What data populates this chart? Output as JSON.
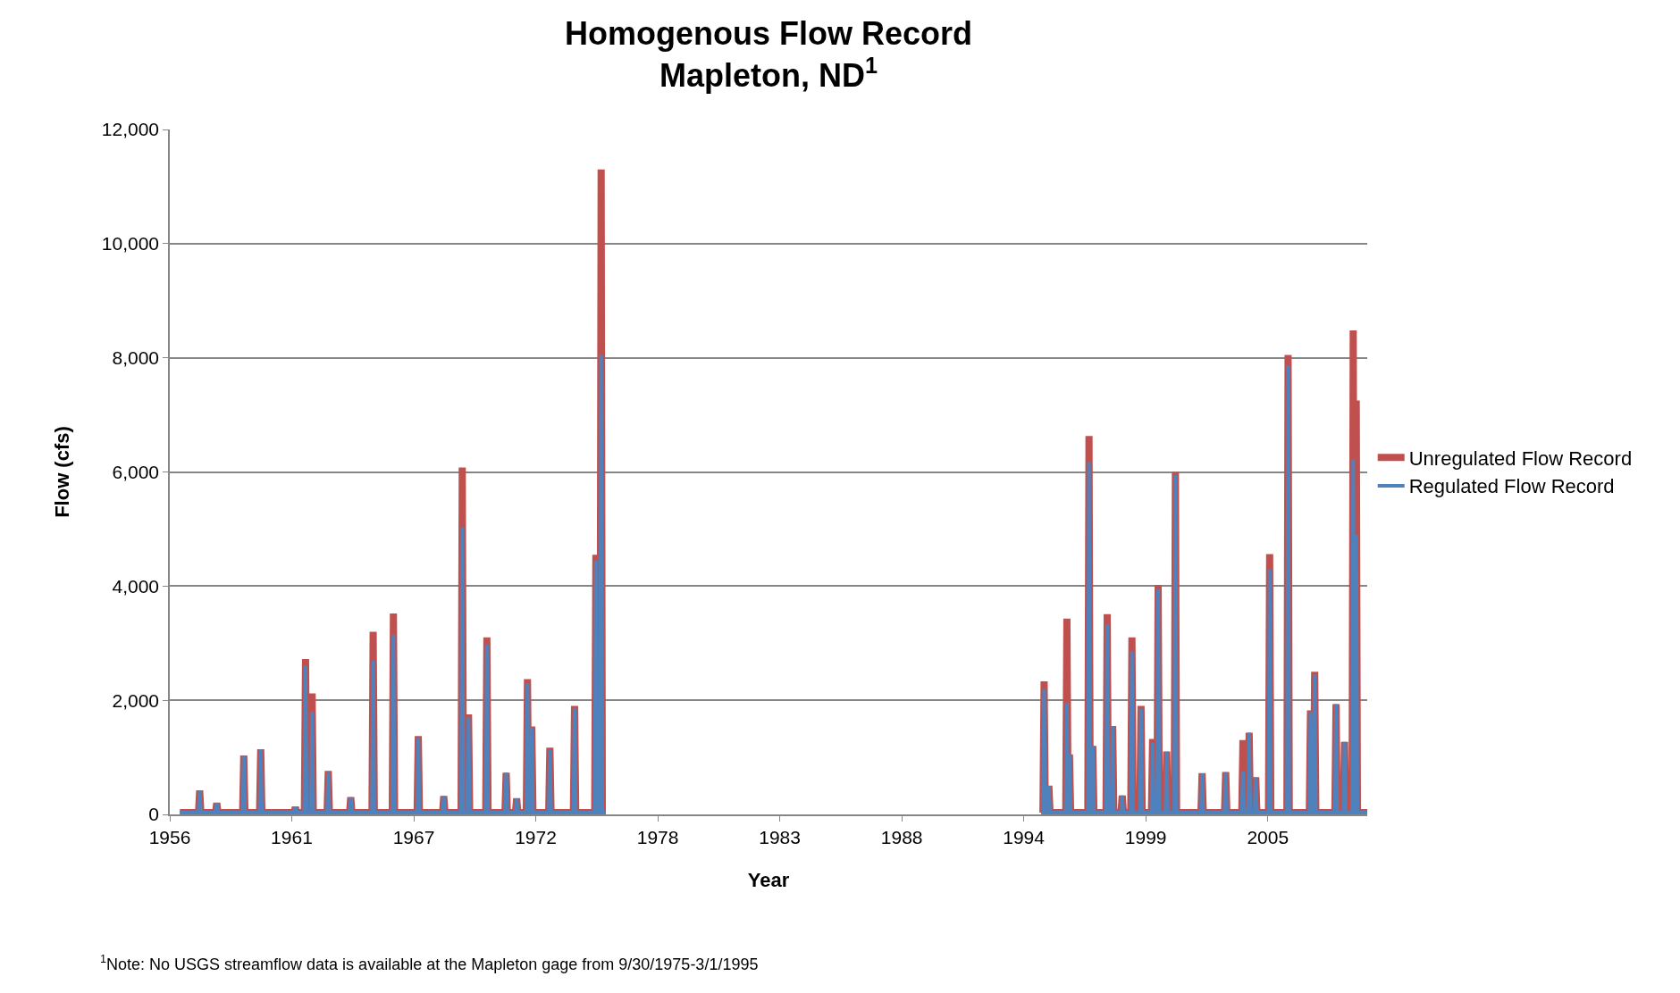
{
  "chart_data": {
    "type": "line",
    "title": "Homogenous Flow Record\nMapleton, ND$^{1}$",
    "xlabel": "Year",
    "ylabel": "Flow (cfs)",
    "annotations": [
      "$^{1}$Note: No USGS streamflow data is available at the Mapleton gage from 9/30/1975-3/1/1995"
    ],
    "x": [
      "1956-10-01",
      "1957-08-01",
      "1957-08-20",
      "1957-09-08",
      "1958-05-06",
      "1958-05-25",
      "1958-06-13",
      "1959-07-20",
      "1959-08-08",
      "1959-08-27",
      "1960-04-21",
      "1960-05-10",
      "1960-05-29",
      "1961-11-06",
      "1961-11-25",
      "1961-12-14",
      "1962-04-21",
      "1962-05-10",
      "1962-05-29",
      "1962-08-06",
      "1962-08-25",
      "1962-09-13",
      "1963-04-26",
      "1963-05-15",
      "1963-06-03",
      "1964-04-26",
      "1964-05-15",
      "1964-06-03",
      "1965-04-26",
      "1965-05-15",
      "1965-06-03",
      "1966-03-22",
      "1966-04-10",
      "1966-04-29",
      "1967-05-01",
      "1967-05-20",
      "1967-06-08",
      "1968-06-19",
      "1968-07-08",
      "1968-07-27",
      "1969-04-16",
      "1969-05-05",
      "1969-05-24",
      "1969-07-27",
      "1969-08-15",
      "1969-09-03",
      "1970-05-22",
      "1970-06-10",
      "1970-06-29",
      "1971-04-01",
      "1971-04-20",
      "1971-05-09",
      "1971-09-19",
      "1971-10-08",
      "1971-10-27",
      "1972-03-13",
      "1972-04-01",
      "1972-04-20",
      "1972-05-22",
      "1972-06-10",
      "1972-06-29",
      "1973-03-13",
      "1973-04-01",
      "1973-04-20",
      "1974-04-19",
      "1974-05-08",
      "1974-05-27",
      "1975-04-01",
      "1975-04-20",
      "1975-05-09",
      "1975-06-26",
      "1975-07-15",
      "1975-08-03",
      "1975-09-30",
      "1985-06-01",
      "1995-03-01",
      "1995-03-27",
      "1995-04-15",
      "1995-05-04",
      "1995-06-12",
      "1995-07-01",
      "1995-07-20",
      "1996-04-01",
      "1996-04-20",
      "1996-05-09",
      "1996-05-18",
      "1996-06-01",
      "1996-06-20",
      "1997-03-27",
      "1997-04-15",
      "1997-05-04",
      "1997-05-27",
      "1997-06-15",
      "1997-07-04",
      "1998-01-17",
      "1998-02-05",
      "1998-02-24",
      "1998-04-16",
      "1998-05-05",
      "1998-05-24",
      "1998-09-19",
      "1998-10-08",
      "1998-10-27",
      "1999-02-24",
      "1999-03-15",
      "1999-04-03",
      "1999-07-22",
      "1999-08-10",
      "1999-08-29",
      "2000-01-27",
      "2000-02-15",
      "2000-03-05",
      "2000-04-26",
      "2000-05-15",
      "2000-06-03",
      "2000-09-12",
      "2000-10-01",
      "2000-10-20",
      "2001-02-01",
      "2001-02-20",
      "2001-03-11",
      "2002-04-12",
      "2002-05-01",
      "2002-05-20",
      "2003-05-01",
      "2003-05-20",
      "2003-06-08",
      "2004-02-06",
      "2004-02-25",
      "2004-03-15",
      "2004-05-17",
      "2004-06-05",
      "2004-06-24",
      "2004-09-01",
      "2004-09-20",
      "2004-10-09",
      "2005-04-16",
      "2005-05-05",
      "2005-05-24",
      "2006-02-10",
      "2006-03-01",
      "2006-03-20",
      "2007-02-10",
      "2007-03-01",
      "2007-03-20",
      "2007-04-19",
      "2007-05-08",
      "2007-05-27",
      "2008-04-01",
      "2008-04-20",
      "2008-05-09",
      "2008-08-17",
      "2008-09-05",
      "2008-09-24",
      "2009-01-06",
      "2009-01-25",
      "2009-02-13",
      "2009-02-24",
      "2009-03-15",
      "2009-04-03",
      "2009-09-10"
    ],
    "series": [
      {
        "name": "Unregulated Flow Record",
        "color": "#c0504d",
        "values": [
          30,
          30,
          420,
          30,
          30,
          200,
          30,
          30,
          1030,
          30,
          30,
          1140,
          30,
          30,
          130,
          30,
          30,
          2720,
          30,
          30,
          2120,
          30,
          30,
          760,
          30,
          30,
          300,
          30,
          30,
          3200,
          30,
          30,
          3520,
          30,
          30,
          1370,
          30,
          30,
          320,
          30,
          30,
          6080,
          30,
          30,
          1750,
          30,
          30,
          3100,
          30,
          30,
          730,
          30,
          30,
          280,
          30,
          30,
          2370,
          30,
          30,
          1540,
          30,
          30,
          1170,
          30,
          30,
          1900,
          30,
          30,
          4550,
          30,
          30,
          11300,
          30,
          30,
          null,
          30,
          30,
          2330,
          30,
          30,
          500,
          30,
          30,
          3430,
          30,
          30,
          1050,
          30,
          30,
          6630,
          30,
          30,
          1200,
          30,
          30,
          3510,
          30,
          30,
          1550,
          30,
          30,
          330,
          30,
          30,
          3100,
          30,
          30,
          1900,
          30,
          30,
          1320,
          30,
          30,
          4020,
          30,
          30,
          1100,
          30,
          30,
          6000,
          30,
          30,
          720,
          30,
          30,
          740,
          30,
          30,
          1300,
          30,
          30,
          1430,
          30,
          30,
          650,
          30,
          30,
          4560,
          30,
          30,
          8050,
          30,
          30,
          1820,
          30,
          30,
          2500,
          30,
          30,
          1930,
          30,
          30,
          1270,
          30,
          30,
          8480,
          30,
          30,
          7250,
          30,
          30
        ]
      },
      {
        "name": "Regulated Flow Record",
        "color": "#4f81bd",
        "values": [
          30,
          30,
          420,
          30,
          30,
          200,
          30,
          30,
          1030,
          30,
          30,
          1140,
          30,
          30,
          130,
          30,
          30,
          2600,
          30,
          30,
          1800,
          30,
          30,
          740,
          30,
          30,
          300,
          30,
          30,
          2700,
          30,
          30,
          3150,
          30,
          30,
          1340,
          30,
          30,
          320,
          30,
          30,
          5030,
          30,
          30,
          1700,
          30,
          30,
          2980,
          30,
          30,
          730,
          30,
          30,
          280,
          30,
          30,
          2300,
          30,
          30,
          1520,
          30,
          30,
          1130,
          30,
          30,
          1860,
          30,
          30,
          4450,
          30,
          30,
          8050,
          30,
          30,
          null,
          30,
          30,
          2200,
          30,
          30,
          500,
          30,
          30,
          1950,
          30,
          30,
          1050,
          30,
          30,
          6180,
          30,
          30,
          1200,
          30,
          30,
          3330,
          30,
          30,
          1550,
          30,
          30,
          330,
          30,
          30,
          2860,
          30,
          30,
          1850,
          30,
          30,
          1250,
          30,
          30,
          3950,
          30,
          30,
          1100,
          30,
          30,
          5950,
          30,
          30,
          720,
          30,
          30,
          740,
          30,
          30,
          750,
          30,
          30,
          1430,
          30,
          30,
          650,
          30,
          30,
          4300,
          30,
          30,
          7870,
          30,
          30,
          1800,
          30,
          30,
          2450,
          30,
          30,
          1930,
          30,
          30,
          1270,
          30,
          30,
          6220,
          30,
          30,
          4900,
          30,
          30
        ]
      }
    ],
    "xlim": [
      "1956-04-20",
      "2009-09-10"
    ],
    "xticks": [
      {
        "value": "1956-04-20",
        "label": "1956"
      },
      {
        "value": "1961-09-27",
        "label": "1961"
      },
      {
        "value": "1967-03-07",
        "label": "1967"
      },
      {
        "value": "1972-08-14",
        "label": "1972"
      },
      {
        "value": "1978-01-22",
        "label": "1978"
      },
      {
        "value": "1983-07-02",
        "label": "1983"
      },
      {
        "value": "1988-12-09",
        "label": "1988"
      },
      {
        "value": "1994-05-18",
        "label": "1994"
      },
      {
        "value": "1999-10-26",
        "label": "1999"
      },
      {
        "value": "2005-04-05",
        "label": "2005"
      }
    ],
    "ylim": [
      0,
      12000
    ],
    "yticks": [
      0,
      {
        "value": 2000,
        "label": "2,000"
      },
      {
        "value": 4000,
        "label": "4,000"
      },
      {
        "value": 6000,
        "label": "6,000"
      },
      {
        "value": 8000,
        "label": "8,000"
      },
      {
        "value": 10000,
        "label": "10,000"
      },
      {
        "value": 12000,
        "label": "12,000"
      }
    ],
    "grid": "y",
    "legend": "right",
    "marker": "none",
    "line_style": "solid"
  }
}
